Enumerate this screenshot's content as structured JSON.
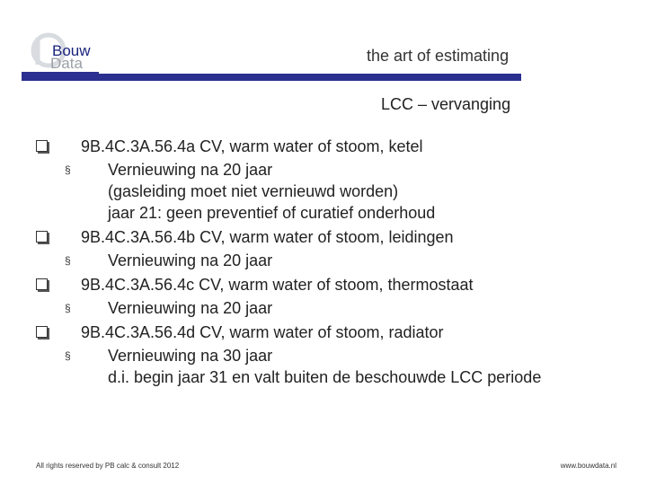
{
  "header": {
    "logo_top": "Bouw",
    "logo_bottom": "Data",
    "tagline": "the art of estimating",
    "title": "LCC – vervanging"
  },
  "items": [
    {
      "text": "9B.4C.3A.56.4a CV, warm water of stoom, ketel",
      "sub": {
        "text": "Vernieuwing na 20 jaar",
        "continuation": [
          "(gasleiding moet niet vernieuwd worden)",
          "jaar 21: geen preventief of curatief onderhoud"
        ]
      }
    },
    {
      "text": "9B.4C.3A.56.4b CV, warm water of stoom, leidingen",
      "sub": {
        "text": "Vernieuwing na 20 jaar",
        "continuation": []
      }
    },
    {
      "text": "9B.4C.3A.56.4c CV, warm water of stoom, thermostaat",
      "sub": {
        "text": "Vernieuwing na 20 jaar",
        "continuation": []
      }
    },
    {
      "text": "9B.4C.3A.56.4d CV, warm water of stoom, radiator",
      "sub": {
        "text": "Vernieuwing na 30 jaar",
        "continuation": [
          "d.i. begin jaar 31 en valt buiten de beschouwde LCC periode"
        ]
      }
    }
  ],
  "footer": {
    "left": "All rights reserved by PB calc & consult 2012",
    "right": "www.bouwdata.nl"
  },
  "colors": {
    "brand": "#2b2f8f",
    "text": "#222222"
  }
}
